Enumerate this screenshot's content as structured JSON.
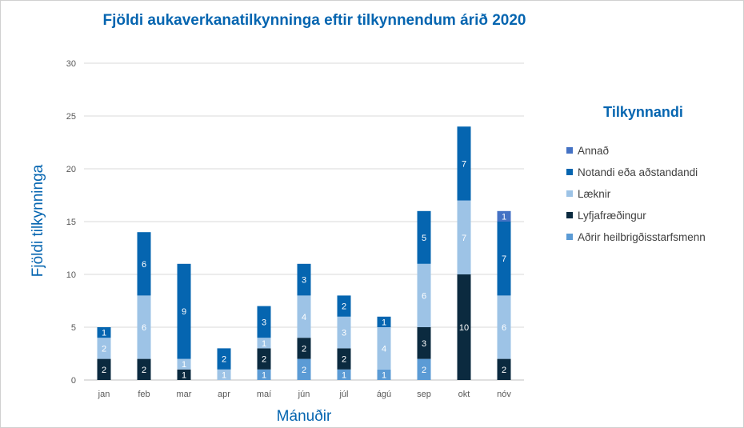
{
  "chart_data": {
    "type": "bar",
    "stacked": true,
    "title": "Fjöldi aukaverkanatilkynninga eftir tilkynnendum árið 2020",
    "xlabel": "Mánuðir",
    "ylabel": "Fjöldi tilkynninga",
    "ylim": [
      0,
      30
    ],
    "yticks": [
      0,
      5,
      10,
      15,
      20,
      25,
      30
    ],
    "grid": true,
    "legend_title": "Tilkynnandi",
    "legend_position": "right",
    "categories": [
      "jan",
      "feb",
      "mar",
      "apr",
      "maí",
      "jún",
      "júl",
      "ágú",
      "sep",
      "okt",
      "nóv"
    ],
    "series": [
      {
        "name": "Aðrir heilbrigðisstarfsmenn",
        "color": "#5b9bd5",
        "values": [
          0,
          0,
          0,
          0,
          1,
          2,
          1,
          1,
          2,
          0,
          0
        ]
      },
      {
        "name": "Lyfjafræðingur",
        "color": "#0b2a3f",
        "values": [
          2,
          2,
          1,
          0,
          2,
          2,
          2,
          0,
          3,
          10,
          2
        ]
      },
      {
        "name": "Læknir",
        "color": "#9dc3e6",
        "values": [
          2,
          6,
          1,
          1,
          1,
          4,
          3,
          4,
          6,
          7,
          6
        ]
      },
      {
        "name": "Notandi eða aðstandandi",
        "color": "#0565b0",
        "values": [
          1,
          6,
          9,
          2,
          3,
          3,
          2,
          1,
          5,
          7,
          7
        ]
      },
      {
        "name": "Annað",
        "color": "#4472c4",
        "values": [
          0,
          0,
          0,
          0,
          0,
          0,
          0,
          0,
          0,
          0,
          1
        ]
      }
    ],
    "legend_order": [
      "Annað",
      "Notandi eða aðstandandi",
      "Læknir",
      "Lyfjafræðingur",
      "Aðrir heilbrigðisstarfsmenn"
    ],
    "title_color": "#0565b0",
    "axis_title_color": "#0565b0"
  }
}
